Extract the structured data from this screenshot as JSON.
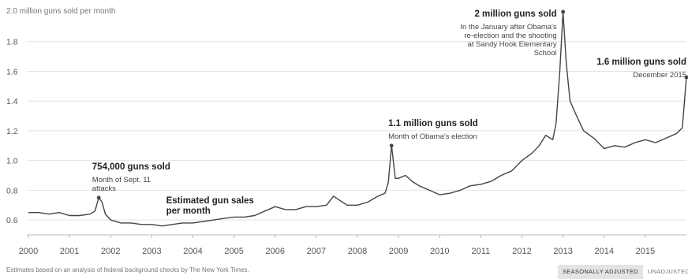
{
  "chart_data": {
    "type": "line",
    "unit_label": "2.0 million guns sold per month",
    "ylim": [
      0.5,
      2.0
    ],
    "yticks": [
      "0.6",
      "0.8",
      "1.0",
      "1.2",
      "1.4",
      "1.6",
      "1.8"
    ],
    "xlim": [
      2000.0,
      2016.0
    ],
    "xticks": [
      "2000",
      "2001",
      "2002",
      "2003",
      "2004",
      "2005",
      "2006",
      "2007",
      "2008",
      "2009",
      "2010",
      "2011",
      "2012",
      "2013",
      "2014",
      "2015"
    ],
    "grid": "horizontal",
    "series": [
      {
        "name": "Estimated gun sales per month",
        "points": [
          [
            2000.0,
            0.65
          ],
          [
            2000.25,
            0.65
          ],
          [
            2000.5,
            0.64
          ],
          [
            2000.75,
            0.65
          ],
          [
            2001.0,
            0.63
          ],
          [
            2001.25,
            0.63
          ],
          [
            2001.5,
            0.64
          ],
          [
            2001.62,
            0.66
          ],
          [
            2001.71,
            0.75
          ],
          [
            2001.79,
            0.72
          ],
          [
            2001.87,
            0.64
          ],
          [
            2002.0,
            0.6
          ],
          [
            2002.25,
            0.58
          ],
          [
            2002.5,
            0.58
          ],
          [
            2002.75,
            0.57
          ],
          [
            2003.0,
            0.57
          ],
          [
            2003.25,
            0.56
          ],
          [
            2003.5,
            0.57
          ],
          [
            2003.75,
            0.58
          ],
          [
            2004.0,
            0.58
          ],
          [
            2004.25,
            0.59
          ],
          [
            2004.5,
            0.6
          ],
          [
            2004.75,
            0.61
          ],
          [
            2005.0,
            0.62
          ],
          [
            2005.25,
            0.62
          ],
          [
            2005.5,
            0.63
          ],
          [
            2005.75,
            0.66
          ],
          [
            2006.0,
            0.69
          ],
          [
            2006.25,
            0.67
          ],
          [
            2006.5,
            0.67
          ],
          [
            2006.75,
            0.69
          ],
          [
            2007.0,
            0.69
          ],
          [
            2007.25,
            0.7
          ],
          [
            2007.42,
            0.76
          ],
          [
            2007.58,
            0.73
          ],
          [
            2007.75,
            0.7
          ],
          [
            2008.0,
            0.7
          ],
          [
            2008.25,
            0.72
          ],
          [
            2008.5,
            0.76
          ],
          [
            2008.67,
            0.78
          ],
          [
            2008.75,
            0.85
          ],
          [
            2008.83,
            1.1
          ],
          [
            2008.92,
            0.88
          ],
          [
            2009.0,
            0.88
          ],
          [
            2009.17,
            0.9
          ],
          [
            2009.33,
            0.86
          ],
          [
            2009.5,
            0.83
          ],
          [
            2009.75,
            0.8
          ],
          [
            2010.0,
            0.77
          ],
          [
            2010.25,
            0.78
          ],
          [
            2010.5,
            0.8
          ],
          [
            2010.75,
            0.83
          ],
          [
            2011.0,
            0.84
          ],
          [
            2011.25,
            0.86
          ],
          [
            2011.5,
            0.9
          ],
          [
            2011.75,
            0.93
          ],
          [
            2012.0,
            1.0
          ],
          [
            2012.25,
            1.05
          ],
          [
            2012.42,
            1.1
          ],
          [
            2012.58,
            1.17
          ],
          [
            2012.75,
            1.14
          ],
          [
            2012.83,
            1.25
          ],
          [
            2012.92,
            1.6
          ],
          [
            2013.0,
            2.0
          ],
          [
            2013.08,
            1.65
          ],
          [
            2013.17,
            1.4
          ],
          [
            2013.33,
            1.3
          ],
          [
            2013.5,
            1.2
          ],
          [
            2013.75,
            1.15
          ],
          [
            2014.0,
            1.08
          ],
          [
            2014.25,
            1.1
          ],
          [
            2014.5,
            1.09
          ],
          [
            2014.75,
            1.12
          ],
          [
            2015.0,
            1.14
          ],
          [
            2015.25,
            1.12
          ],
          [
            2015.5,
            1.15
          ],
          [
            2015.75,
            1.18
          ],
          [
            2015.9,
            1.22
          ],
          [
            2016.0,
            1.56
          ]
        ]
      }
    ],
    "annotations": [
      {
        "title": "754,000 guns sold",
        "text": [
          "Month of Sept. 11",
          "attacks"
        ],
        "x": 2001.71,
        "y": 0.75,
        "align": "left",
        "marker": true
      },
      {
        "title": "Estimated gun sales",
        "text": [
          "per month"
        ],
        "x": 2003.5,
        "y": 0.68,
        "align": "left",
        "marker": false,
        "title_lines": [
          "Estimated gun sales",
          "per month"
        ]
      },
      {
        "title": "1.1 million guns sold",
        "text": [
          "Month of Obama's election"
        ],
        "x": 2008.83,
        "y": 1.1,
        "align": "left",
        "marker": true
      },
      {
        "title": "2 million guns sold",
        "text": [
          "In the January after Obama's",
          "re-election and the shooting",
          "at Sandy Hook Elementary",
          "School"
        ],
        "x": 2013.0,
        "y": 2.0,
        "align": "right",
        "marker": true
      },
      {
        "title": "1.6 million guns sold",
        "text": [
          "December 2015"
        ],
        "x": 2016.0,
        "y": 1.56,
        "align": "right",
        "marker": true
      }
    ]
  },
  "footer": {
    "source": "Estimates based on an analysis of federal background checks by The New York Times.",
    "toggle": [
      {
        "label": "SEASONALLY ADJUSTED",
        "active": true
      },
      {
        "label": "UNADJUSTED",
        "active": false
      }
    ]
  }
}
